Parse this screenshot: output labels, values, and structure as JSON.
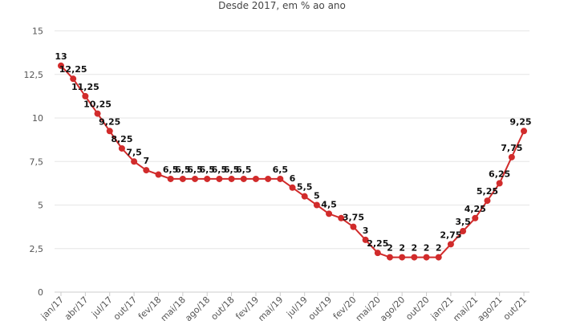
{
  "chart_data": {
    "type": "line",
    "title": "",
    "subtitle": "Desde 2017, em % ao ano",
    "xlabel": "",
    "ylabel": "",
    "ylim": [
      0,
      15
    ],
    "yticks": [
      "0",
      "2,5",
      "5",
      "7,5",
      "10",
      "12,5",
      "15"
    ],
    "grid": true,
    "colors": {
      "line": "#d12b2b",
      "grid": "#e6e6e6",
      "axis": "#cccccc"
    },
    "x_tick_labels": [
      "jan/17",
      "abr/17",
      "jul/17",
      "out/17",
      "fev/18",
      "mai/18",
      "ago/18",
      "out/18",
      "fev/19",
      "mai/19",
      "jul/19",
      "out/19",
      "fev/20",
      "mai/20",
      "ago/20",
      "out/20",
      "jan/21",
      "mai/21",
      "ago/21",
      "out/21"
    ],
    "series": [
      {
        "values": [
          13,
          12.25,
          11.25,
          10.25,
          9.25,
          8.25,
          7.5,
          7,
          6.75,
          6.5,
          6.5,
          6.5,
          6.5,
          6.5,
          6.5,
          6.5,
          6.5,
          6.5,
          6.5,
          6,
          5.5,
          5,
          4.5,
          4.25,
          3.75,
          3,
          2.25,
          2,
          2,
          2,
          2,
          2,
          2.75,
          3.5,
          4.25,
          5.25,
          6.25,
          7.75,
          9.25
        ],
        "data_labels": [
          "13",
          "12,25",
          "11,25",
          "10,25",
          "9,25",
          "8,25",
          "7,5",
          "7",
          "",
          "6,5",
          "6,5",
          "6,5",
          "6,5",
          "6,5",
          "6,5",
          "6,5",
          "",
          "",
          "6,5",
          "6",
          "5,5",
          "5",
          "4,5",
          "",
          "3,75",
          "3",
          "2,25",
          "2",
          "2",
          "2",
          "2",
          "2",
          "2,75",
          "3,5",
          "4,25",
          "5,25",
          "6,25",
          "7,75",
          "9,25"
        ]
      }
    ]
  }
}
